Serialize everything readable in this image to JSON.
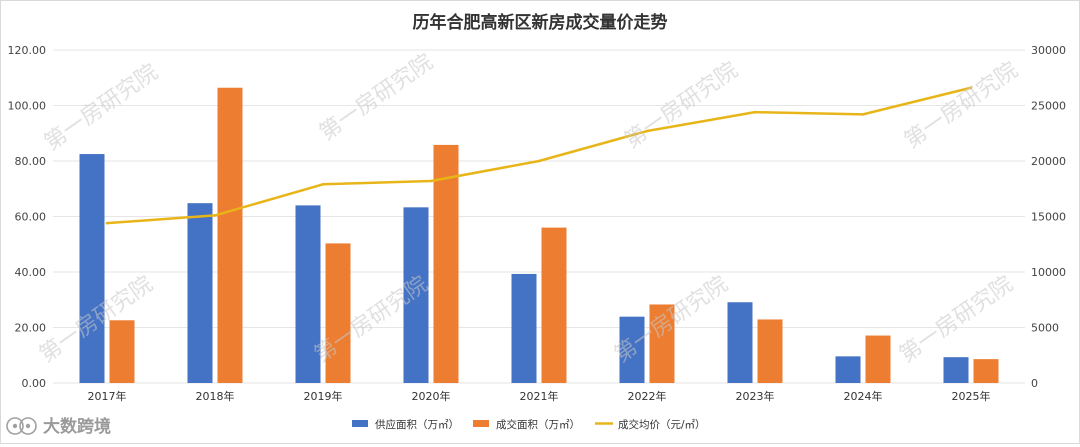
{
  "chart_data": {
    "type": "bar",
    "title": "历年合肥高新区新房成交量价走势",
    "categories": [
      "2017年",
      "2018年",
      "2019年",
      "2020年",
      "2021年",
      "2022年",
      "2023年",
      "2024年",
      "2025年"
    ],
    "series": [
      {
        "name": "供应面积（万㎡）",
        "type": "bar",
        "axis": "left",
        "color": "#4472C4",
        "values": [
          82.5,
          64.8,
          64.0,
          63.3,
          39.3,
          23.9,
          29.1,
          9.6,
          9.3
        ]
      },
      {
        "name": "成交面积（万㎡）",
        "type": "bar",
        "axis": "left",
        "color": "#ED7D31",
        "values": [
          22.6,
          106.4,
          50.3,
          85.8,
          56.0,
          28.3,
          22.9,
          17.1,
          8.6
        ]
      },
      {
        "name": "成交均价（元/㎡）",
        "type": "line",
        "axis": "right",
        "color": "#E8B518",
        "values": [
          14400,
          15100,
          17900,
          18200,
          20000,
          22700,
          24400,
          24200,
          26600
        ]
      }
    ],
    "y_left": {
      "min": 0,
      "max": 120,
      "ticks": [
        0,
        20,
        40,
        60,
        80,
        100,
        120
      ],
      "tick_labels": [
        "0.00",
        "20.00",
        "40.00",
        "60.00",
        "80.00",
        "100.00",
        "120.00"
      ]
    },
    "y_right": {
      "min": 0,
      "max": 30000,
      "ticks": [
        0,
        5000,
        10000,
        15000,
        20000,
        25000,
        30000
      ],
      "tick_labels": [
        "0",
        "5000",
        "10000",
        "15000",
        "20000",
        "25000",
        "30000"
      ]
    },
    "grid": true,
    "legend_position": "bottom-center"
  },
  "watermark": {
    "text": "第一房研究院"
  },
  "brand": {
    "text": "大数跨境",
    "icon": "brand-logo-icon"
  },
  "colors": {
    "grid": "#e6e6e6",
    "axis_text": "#444444",
    "watermark": "#c8c8c8"
  }
}
